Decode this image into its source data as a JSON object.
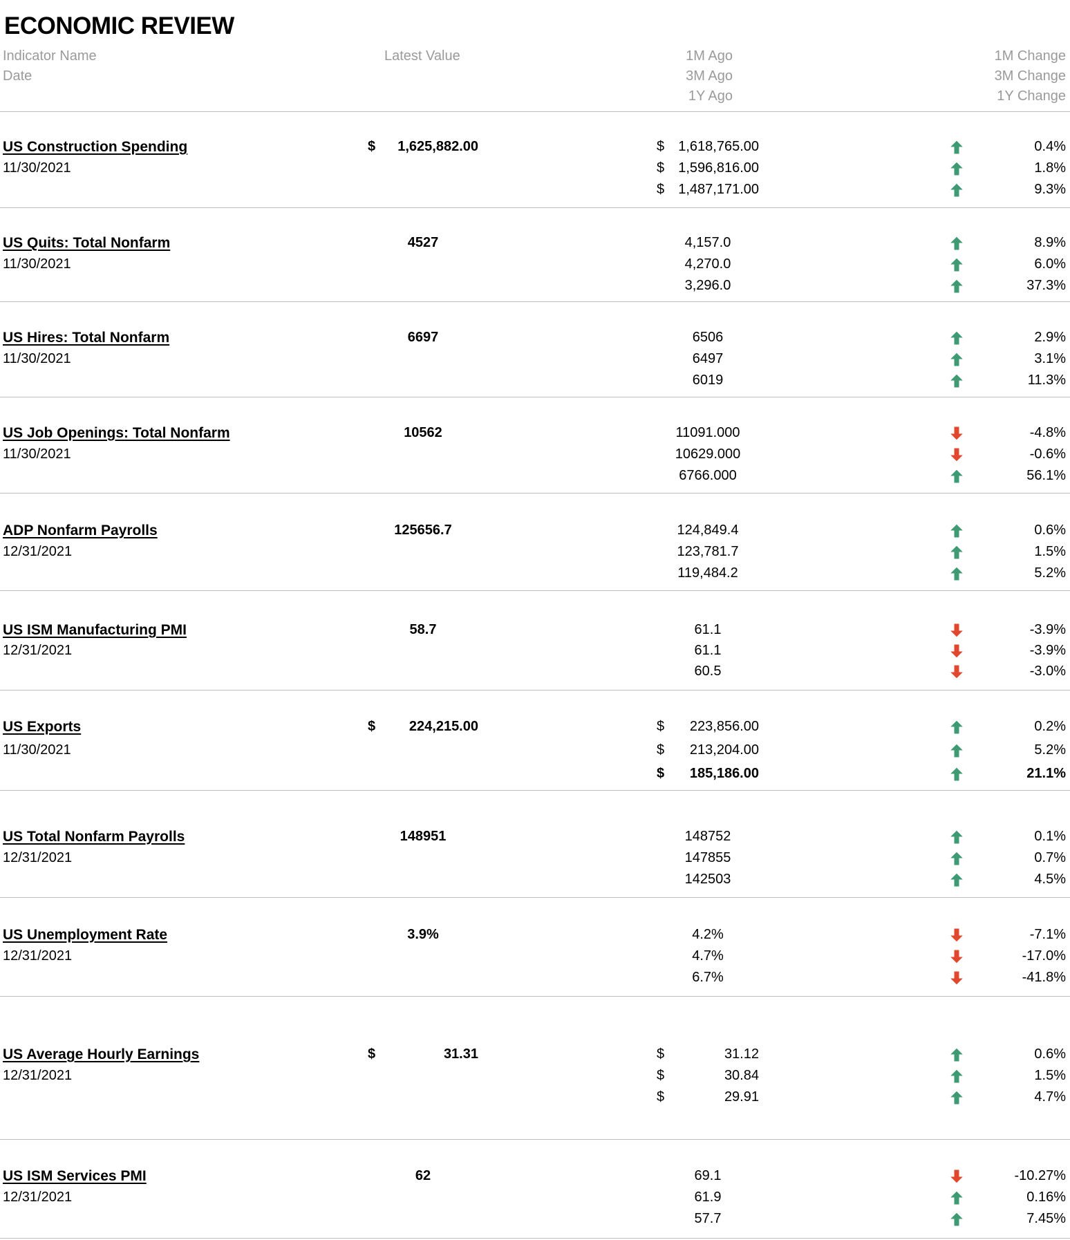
{
  "title": "ECONOMIC REVIEW",
  "headers": {
    "indicator_name": "Indicator Name",
    "date": "Date",
    "latest_value": "Latest Value",
    "one_month_ago": "1M Ago",
    "three_month_ago": "3M Ago",
    "one_year_ago": "1Y Ago",
    "one_month_change": "1M Change",
    "three_month_change": "3M Change",
    "one_year_change": "1Y Change"
  },
  "colors": {
    "up_arrow": "#3d9a72",
    "down_arrow": "#e0472c",
    "header_text": "#9a9a9a",
    "rule": "#bdbdbd"
  },
  "rows": [
    {
      "name": "US Construction Spending",
      "date": "11/30/2021",
      "latest": "1,625,882.00",
      "currency": true,
      "ago": [
        "1,618,765.00",
        "1,596,816.00",
        "1,487,171.00"
      ],
      "change": [
        "0.4%",
        "1.8%",
        "9.3%"
      ],
      "direction": [
        "up-arrow-icon",
        "up-arrow-icon",
        "up-arrow-icon"
      ]
    },
    {
      "name": "US Quits: Total Nonfarm",
      "date": "11/30/2021",
      "latest": "4527",
      "currency": false,
      "ago": [
        "4,157.0",
        "4,270.0",
        "3,296.0"
      ],
      "change": [
        "8.9%",
        "6.0%",
        "37.3%"
      ],
      "direction": [
        "up-arrow-icon",
        "up-arrow-icon",
        "up-arrow-icon"
      ]
    },
    {
      "name": "US Hires: Total Nonfarm",
      "date": "11/30/2021",
      "latest": "6697",
      "currency": false,
      "ago": [
        "6506",
        "6497",
        "6019"
      ],
      "change": [
        "2.9%",
        "3.1%",
        "11.3%"
      ],
      "direction": [
        "up-arrow-icon",
        "up-arrow-icon",
        "up-arrow-icon"
      ]
    },
    {
      "name": "US Job Openings: Total Nonfarm",
      "date": "11/30/2021",
      "latest": "10562",
      "currency": false,
      "ago": [
        "11091.000",
        "10629.000",
        "6766.000"
      ],
      "change": [
        "-4.8%",
        "-0.6%",
        "56.1%"
      ],
      "direction": [
        "down-arrow-icon",
        "down-arrow-icon",
        "up-arrow-icon"
      ]
    },
    {
      "name": "ADP Nonfarm Payrolls",
      "date": "12/31/2021",
      "latest": "125656.7",
      "currency": false,
      "ago": [
        "124,849.4",
        "123,781.7",
        "119,484.2"
      ],
      "change": [
        "0.6%",
        "1.5%",
        "5.2%"
      ],
      "direction": [
        "up-arrow-icon",
        "up-arrow-icon",
        "up-arrow-icon"
      ]
    },
    {
      "name": "US ISM Manufacturing PMI",
      "date": "12/31/2021",
      "latest": "58.7",
      "currency": false,
      "ago": [
        "61.1",
        "61.1",
        "60.5"
      ],
      "change": [
        "-3.9%",
        "-3.9%",
        "-3.0%"
      ],
      "direction": [
        "down-arrow-icon",
        "down-arrow-icon",
        "down-arrow-icon"
      ]
    },
    {
      "name": "US Exports",
      "date": "11/30/2021",
      "latest": "224,215.00",
      "currency": true,
      "ago": [
        "223,856.00",
        "213,204.00",
        "185,186.00"
      ],
      "change": [
        "0.2%",
        "5.2%",
        "21.1%"
      ],
      "direction": [
        "up-arrow-icon",
        "up-arrow-icon",
        "up-arrow-icon"
      ]
    },
    {
      "name": "US Total Nonfarm Payrolls",
      "date": "12/31/2021",
      "latest": "148951",
      "currency": false,
      "ago": [
        "148752",
        "147855",
        "142503"
      ],
      "change": [
        "0.1%",
        "0.7%",
        "4.5%"
      ],
      "direction": [
        "up-arrow-icon",
        "up-arrow-icon",
        "up-arrow-icon"
      ]
    },
    {
      "name": "US Unemployment Rate",
      "date": "12/31/2021",
      "latest": "3.9%",
      "currency": false,
      "ago": [
        "4.2%",
        "4.7%",
        "6.7%"
      ],
      "change": [
        "-7.1%",
        "-17.0%",
        "-41.8%"
      ],
      "direction": [
        "down-arrow-icon",
        "down-arrow-icon",
        "down-arrow-icon"
      ]
    },
    {
      "name": "US Average Hourly Earnings",
      "date": "12/31/2021",
      "latest": "31.31",
      "currency": true,
      "ago": [
        "31.12",
        "30.84",
        "29.91"
      ],
      "change": [
        "0.6%",
        "1.5%",
        "4.7%"
      ],
      "direction": [
        "up-arrow-icon",
        "up-arrow-icon",
        "up-arrow-icon"
      ]
    },
    {
      "name": "US ISM Services PMI",
      "date": "12/31/2021",
      "latest": "62",
      "currency": false,
      "ago": [
        "69.1",
        "61.9",
        "57.7"
      ],
      "change": [
        "-10.27%",
        "0.16%",
        "7.45%"
      ],
      "direction": [
        "down-arrow-icon",
        "up-arrow-icon",
        "up-arrow-icon"
      ]
    }
  ]
}
